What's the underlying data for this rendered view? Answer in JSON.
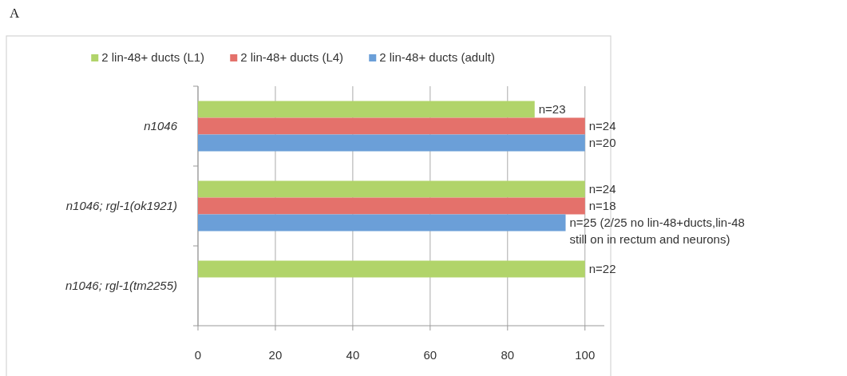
{
  "chart_data": {
    "type": "bar",
    "title": "A",
    "orientation": "horizontal",
    "categories": [
      "n1046",
      "n1046; rgl-1(ok1921)",
      "n1046; rgl-1(tm2255)"
    ],
    "series": [
      {
        "name": "2 lin-48+ ducts (L1)",
        "color": "#b1d46a",
        "values": [
          87,
          100,
          100
        ]
      },
      {
        "name": "2 lin-48+ ducts (L4)",
        "color": "#e4716b",
        "values": [
          100,
          100,
          null
        ]
      },
      {
        "name": "2 lin-48+ ducts (adult)",
        "color": "#6b9fd8",
        "values": [
          100,
          95,
          null
        ]
      }
    ],
    "annotations": [
      "n=23",
      "n=24",
      "n=20",
      "n=24",
      "n=18",
      "n=25 (2/25 no lin-48+ducts,lin-48 still on in rectum and neurons)",
      "n=22"
    ],
    "xlim": [
      0,
      105
    ],
    "xticks": [
      0,
      20,
      40,
      60,
      80,
      100
    ],
    "grid": "x",
    "legend": "top"
  }
}
